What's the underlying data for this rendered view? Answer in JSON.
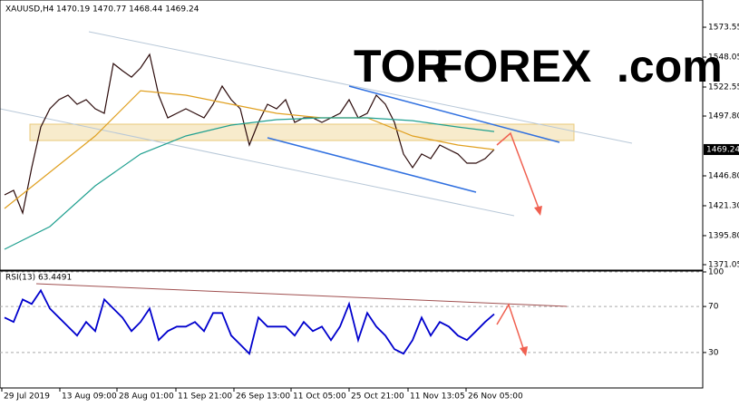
{
  "logo": {
    "tor": "TOR",
    "forex": "FOREX",
    "com": ".com"
  },
  "chart_data": [
    {
      "type": "line",
      "title": "XAUUSD,H4",
      "subtitle": "1470.19 1470.77 1468.44 1469.24",
      "x": [
        0,
        1,
        2,
        3,
        4,
        5,
        6,
        7,
        8,
        9,
        10,
        11,
        12,
        13,
        14,
        15,
        16,
        17,
        18,
        19,
        20,
        21,
        22,
        23,
        24,
        25,
        26,
        27,
        28,
        29,
        30,
        31,
        32,
        33,
        34,
        35,
        36,
        37,
        38,
        39,
        40,
        41,
        42,
        43,
        44,
        45,
        46,
        47,
        48,
        49,
        50,
        51,
        52,
        53,
        54
      ],
      "xlim": [
        -0.5,
        77
      ],
      "ylim": [
        1366.4,
        1592.9
      ],
      "yticks": [
        1573.55,
        1548.05,
        1522.55,
        {
          "value": 1497.8,
          "label": "1497.80"
        },
        {
          "value": 1446.8,
          "label": "1446.80"
        },
        {
          "value": 1421.3,
          "label": "1421.30"
        },
        {
          "value": 1395.8,
          "label": "1395.80"
        },
        1371.05
      ],
      "last_value": 1469.24,
      "series": [
        {
          "color": "#2b0a0a",
          "values": [
            1430.6,
            1434.4,
            1415.1,
            1453.8,
            1488.5,
            1504.0,
            1511.7,
            1515.6,
            1507.9,
            1511.7,
            1504.0,
            1500.1,
            1542.6,
            1536.5,
            1531.0,
            1538.8,
            1550.4,
            1515.6,
            1496.3,
            1500.1,
            1504.0,
            1500.1,
            1496.3,
            1507.9,
            1523.3,
            1511.7,
            1504.0,
            1473.1,
            1492.4,
            1507.9,
            1504.0,
            1511.7,
            1492.4,
            1496.3,
            1496.3,
            1492.4,
            1496.3,
            1500.1,
            1511.7,
            1496.3,
            1500.1,
            1515.6,
            1507.9,
            1492.4,
            1465.4,
            1453.8,
            1465.4,
            1461.5,
            1473.1,
            1469.2,
            1465.4,
            1457.6,
            1457.6,
            1461.5,
            1469.2
          ]
        },
        {
          "color": "#e0a020",
          "x": [
            0,
            5,
            10,
            15,
            20,
            25,
            30,
            35,
            40,
            45,
            50,
            54
          ],
          "values": [
            1419.0,
            1449.9,
            1480.8,
            1519.4,
            1515.6,
            1507.9,
            1500.1,
            1496.3,
            1496.3,
            1480.8,
            1473.1,
            1469.2
          ]
        },
        {
          "color": "#20a090",
          "x": [
            0,
            5,
            10,
            15,
            20,
            25,
            30,
            35,
            40,
            45,
            50,
            54
          ],
          "values": [
            1384.2,
            1403.5,
            1438.3,
            1465.4,
            1480.8,
            1490.1,
            1494.7,
            1496.3,
            1496.3,
            1493.9,
            1488.5,
            1484.6
          ]
        }
      ]
    },
    {
      "type": "line",
      "title": "RSI(13) 63.4491",
      "x": [
        0,
        1,
        2,
        3,
        4,
        5,
        6,
        7,
        8,
        9,
        10,
        11,
        12,
        13,
        14,
        15,
        16,
        17,
        18,
        19,
        20,
        21,
        22,
        23,
        24,
        25,
        26,
        27,
        28,
        29,
        30,
        31,
        32,
        33,
        34,
        35,
        36,
        37,
        38,
        39,
        40,
        41,
        42,
        43,
        44,
        45,
        46,
        47,
        48,
        49,
        50,
        51,
        52,
        53,
        54
      ],
      "xlim": [
        -0.5,
        77
      ],
      "ylim": [
        0,
        100
      ],
      "yticks": [
        100,
        70,
        30
      ],
      "xticks": [
        {
          "value": -0.3,
          "label": "29 Jul 2019"
        },
        {
          "value": 6.1,
          "label": "13 Aug 09:00"
        },
        {
          "value": 12.4,
          "label": "28 Aug 01:00"
        },
        {
          "value": 18.9,
          "label": "11 Sep 21:00"
        },
        {
          "value": 25.3,
          "label": "26 Sep 13:00"
        },
        {
          "value": 31.6,
          "label": "11 Oct 05:00"
        },
        {
          "value": 38,
          "label": "25 Oct 21:00"
        },
        {
          "value": 44.5,
          "label": "11 Nov 13:05"
        },
        {
          "value": 50.9,
          "label": "26 Nov 05:00"
        }
      ],
      "series": [
        {
          "color": "#0000cd",
          "values": [
            60.4,
            56.5,
            76.1,
            72.2,
            83.9,
            68.2,
            60.4,
            52.5,
            44.7,
            56.5,
            48.6,
            76.1,
            68.2,
            60.4,
            48.6,
            56.5,
            68.2,
            40.8,
            48.6,
            52.5,
            52.5,
            56.5,
            48.6,
            64.3,
            64.3,
            44.7,
            36.9,
            29.0,
            60.4,
            52.5,
            52.5,
            52.5,
            44.7,
            56.5,
            48.6,
            52.5,
            40.8,
            52.5,
            72.2,
            40.8,
            64.3,
            52.5,
            44.7,
            32.9,
            29.0,
            40.8,
            60.4,
            44.7,
            56.5,
            52.5,
            44.7,
            40.8,
            48.6,
            56.5,
            63.4
          ]
        }
      ]
    }
  ]
}
